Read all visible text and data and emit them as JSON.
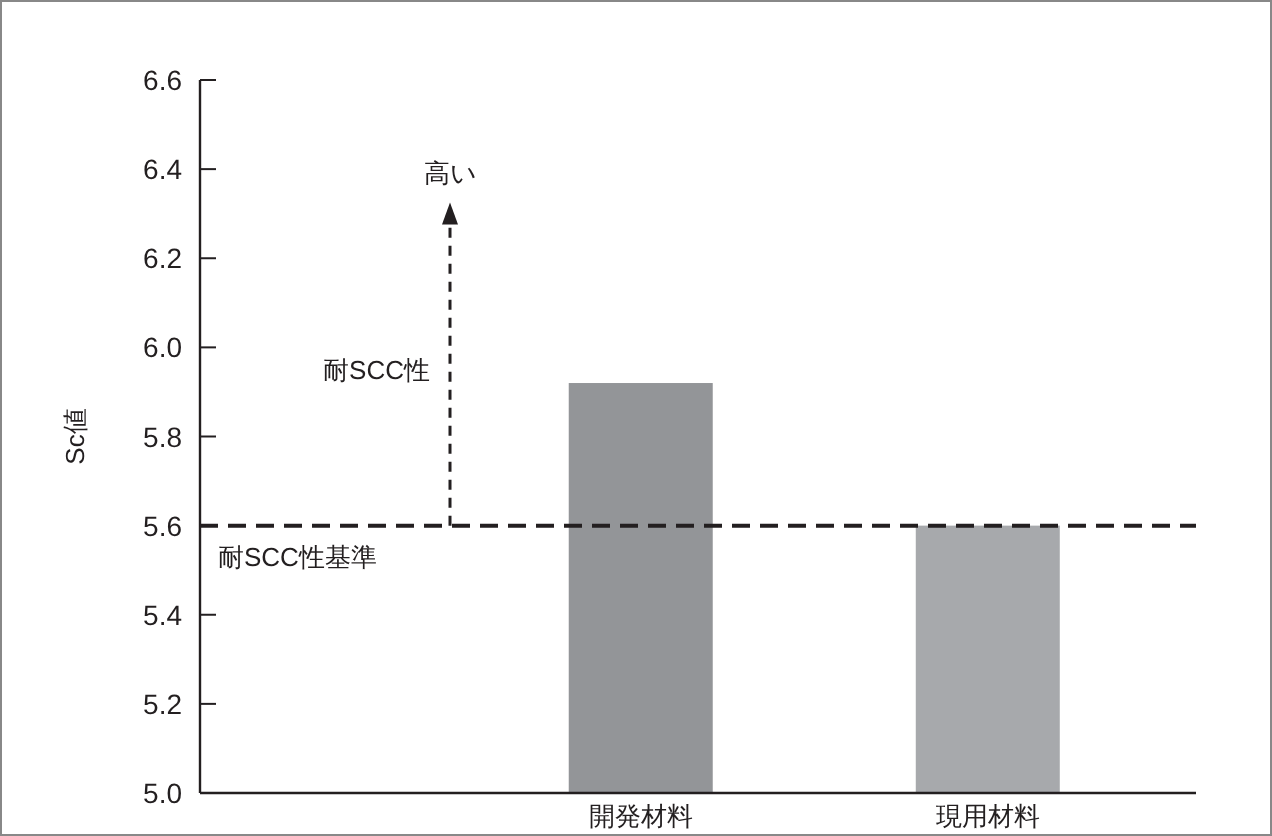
{
  "chart_data": {
    "type": "bar",
    "ylabel": "Sc値",
    "categories": [
      null,
      "開発材料",
      "現用材料"
    ],
    "series": [
      {
        "colors": [
          null,
          "#939598",
          "#a7a9ac"
        ],
        "values": [
          null,
          5.92,
          5.6
        ]
      }
    ],
    "ylim": [
      5.0,
      6.6
    ],
    "yticks": [
      {
        "value": 5.0,
        "label": "5.0"
      },
      {
        "value": 5.2,
        "label": "5.2"
      },
      {
        "value": 5.4,
        "label": "5.4"
      },
      {
        "value": 5.6,
        "label": "5.6"
      },
      {
        "value": 5.8,
        "label": "5.8"
      },
      {
        "value": 6.0,
        "label": "6.0"
      },
      {
        "value": 6.2,
        "label": "6.2"
      },
      {
        "value": 6.4,
        "label": "6.4"
      },
      {
        "value": 6.6,
        "label": "6.6"
      }
    ],
    "ref_lines": [
      {
        "axis": "y",
        "value": 5.6,
        "label": "耐SCC性基準",
        "color": "#231f20",
        "line_style": "dashed"
      }
    ],
    "annotations": [
      "高い",
      "耐SCC性"
    ],
    "grid": false
  }
}
